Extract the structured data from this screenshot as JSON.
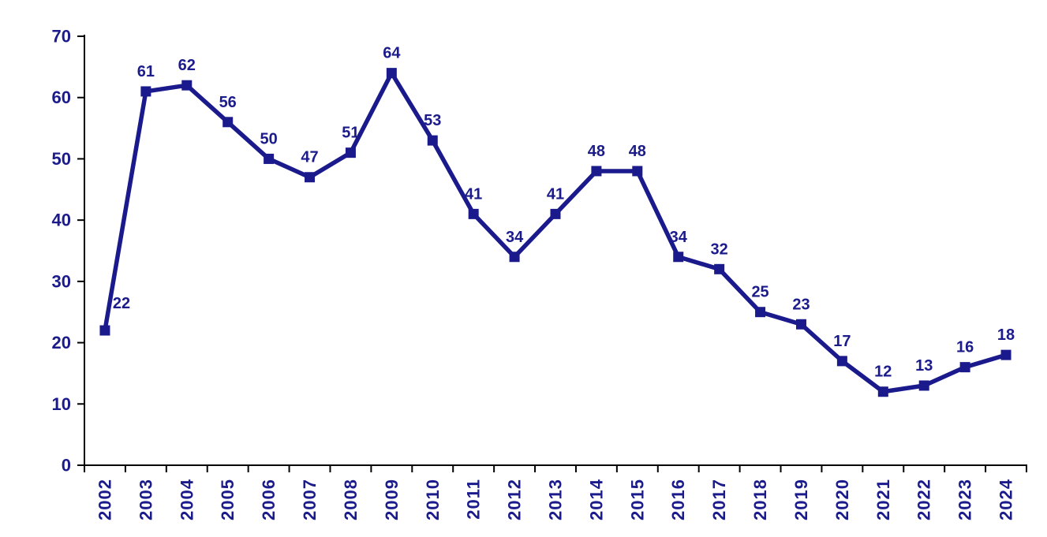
{
  "chart_data": {
    "type": "line",
    "title": "",
    "xlabel": "",
    "ylabel": "",
    "categories": [
      "2002",
      "2003",
      "2004",
      "2005",
      "2006",
      "2007",
      "2008",
      "2009",
      "2010",
      "2011",
      "2012",
      "2013",
      "2014",
      "2015",
      "2016",
      "2017",
      "2018",
      "2019",
      "2020",
      "2021",
      "2022",
      "2023",
      "2024"
    ],
    "series": [
      {
        "name": "annual-values",
        "values": [
          22,
          61,
          62,
          56,
          50,
          47,
          51,
          64,
          53,
          41,
          34,
          41,
          48,
          48,
          34,
          32,
          25,
          23,
          17,
          12,
          13,
          16,
          18
        ],
        "point_labels": [
          "22",
          "61",
          "62",
          "56",
          "50",
          "47",
          "51",
          "64",
          "53",
          "41",
          "34",
          "41",
          "48",
          "48",
          "34",
          "32",
          "25",
          "23",
          "17",
          "12",
          "13",
          "16",
          "18"
        ]
      }
    ],
    "ylim": [
      0,
      70
    ],
    "yticks": [
      0,
      10,
      20,
      30,
      40,
      50,
      60,
      70
    ],
    "ytick_labels": [
      "0",
      "10",
      "20",
      "30",
      "40",
      "50",
      "60",
      "70"
    ],
    "grid": false,
    "legend": false,
    "marker": "square",
    "colors": {
      "line": "#1A1A8C",
      "marker": "#1A1A8C",
      "point_label_text": "#1B1B8C",
      "tick_label_text": "#1B1B8C",
      "axis": "#000000",
      "background": "#FFFFFF"
    }
  }
}
